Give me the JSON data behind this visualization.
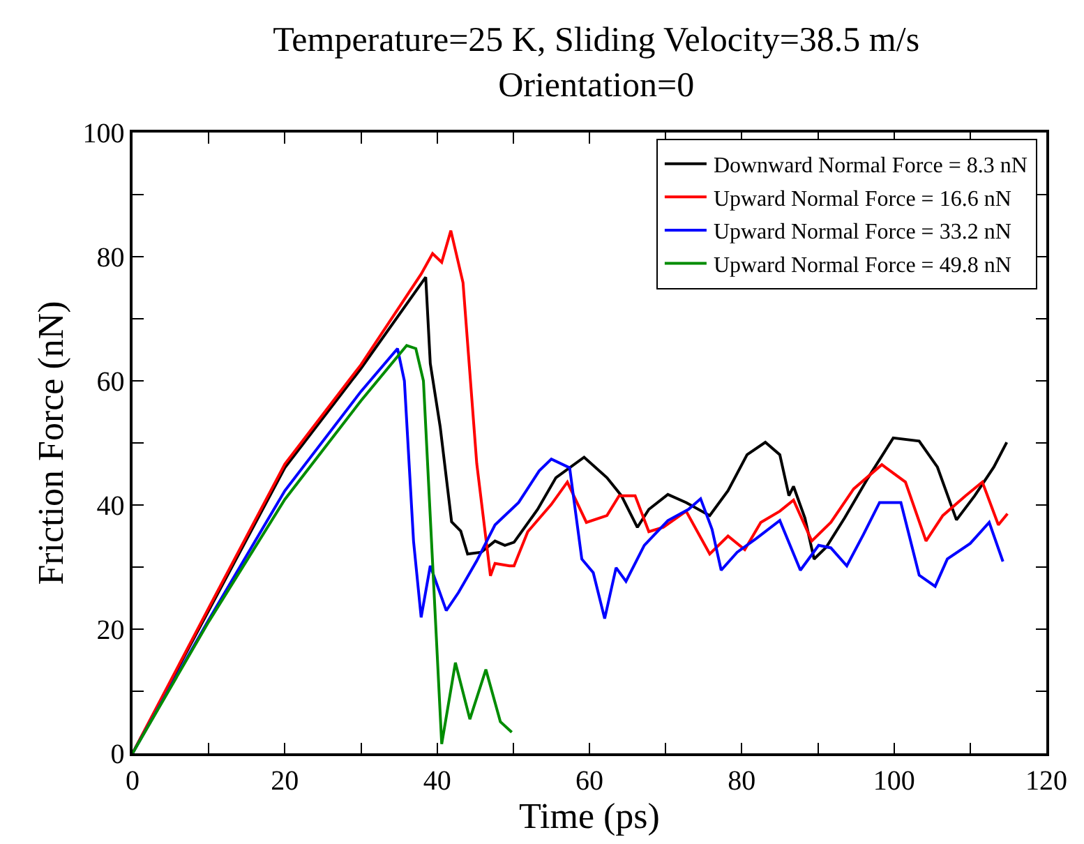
{
  "chart_data": {
    "type": "line",
    "title": "Temperature=25 K, Sliding Velocity=38.5 m/s",
    "subtitle": "Orientation=0",
    "xlabel": "Time (ps)",
    "ylabel": "Friction Force (nN)",
    "xlim": [
      0,
      120
    ],
    "ylim": [
      0,
      100
    ],
    "xticks": [
      0,
      {
        "value": 10,
        "label": null
      },
      20,
      {
        "value": 30,
        "label": null
      },
      40,
      {
        "value": 50,
        "label": null
      },
      60,
      {
        "value": 70,
        "label": null
      },
      80,
      {
        "value": 90,
        "label": null
      },
      100,
      {
        "value": 110,
        "label": null
      },
      120
    ],
    "yticks": [
      0,
      {
        "value": 10,
        "label": null
      },
      20,
      {
        "value": 30,
        "label": null
      },
      40,
      {
        "value": 50,
        "label": null
      },
      60,
      {
        "value": 70,
        "label": null
      },
      80,
      {
        "value": 90,
        "label": null
      },
      100
    ],
    "legend": "top right",
    "marker": "none",
    "line_style": "solid",
    "series": [
      {
        "name": "Downward Normal Force = 8.3 nN",
        "color": "#000000",
        "x": [
          0,
          10,
          20,
          30,
          38.5,
          39.1,
          40.4,
          41.9,
          43.1,
          44.0,
          45.8,
          47.6,
          48.9,
          50.1,
          53.2,
          55.6,
          59.3,
          62.3,
          64.2,
          66.3,
          67.8,
          70.3,
          72.7,
          75.8,
          78.2,
          80.7,
          83.1,
          85.0,
          86.2,
          86.8,
          88.3,
          89.5,
          91.1,
          93.5,
          96.6,
          99.9,
          103.3,
          105.7,
          108.2,
          110.6,
          113.1,
          114.8
        ],
        "values": [
          0,
          23,
          46,
          62,
          76.7,
          62.8,
          52.6,
          37.3,
          35.8,
          32.1,
          32.4,
          34.2,
          33.5,
          34,
          39.3,
          44.4,
          47.7,
          44.4,
          41.5,
          36.4,
          39.3,
          41.7,
          40.4,
          38.3,
          42.3,
          48.1,
          50.1,
          48.1,
          41.5,
          43,
          37.9,
          31.3,
          33.2,
          37.9,
          44.4,
          50.8,
          50.3,
          46.1,
          37.6,
          41.5,
          46.1,
          50.1
        ]
      },
      {
        "name": "Upward Normal Force = 16.6 nN",
        "color": "#ff0000",
        "x": [
          0,
          10,
          20,
          30,
          37.9,
          39.4,
          40.6,
          41.8,
          43.4,
          45.2,
          47.0,
          47.6,
          49.5,
          50.1,
          51.9,
          55.0,
          57.1,
          59.6,
          62.3,
          63.9,
          66.0,
          67.8,
          69.7,
          72.7,
          75.8,
          78.2,
          80.4,
          82.5,
          85.0,
          86.8,
          89.2,
          91.7,
          94.7,
          98.4,
          101.5,
          104.2,
          106.4,
          109.4,
          111.6,
          113.7,
          114.9
        ],
        "values": [
          0,
          23.4,
          46.6,
          62.6,
          77.2,
          80.5,
          79.1,
          84.2,
          75.8,
          46.7,
          28.6,
          30.6,
          30.2,
          30.2,
          35.7,
          40.1,
          43.7,
          37.2,
          38.3,
          41.5,
          41.5,
          35.7,
          36.4,
          39,
          32.1,
          35,
          32.8,
          37.2,
          39,
          40.8,
          34.2,
          37.2,
          42.6,
          46.5,
          43.7,
          34.2,
          38.3,
          41.5,
          43.7,
          36.8,
          38.6
        ]
      },
      {
        "name": "Upward Normal Force = 33.2 nN",
        "color": "#0000ff",
        "x": [
          0,
          10,
          20,
          30,
          34.8,
          35.7,
          36.9,
          37.9,
          39.1,
          41.2,
          42.8,
          45.2,
          47.6,
          50.7,
          53.4,
          55.0,
          57.4,
          59.0,
          60.5,
          62.0,
          63.5,
          64.8,
          67.2,
          70.3,
          73.0,
          74.6,
          76.1,
          77.3,
          79.4,
          81.9,
          85.0,
          87.7,
          90.1,
          91.7,
          93.8,
          96.0,
          98.1,
          100.9,
          103.3,
          105.4,
          107.0,
          110.0,
          112.5,
          114.3
        ],
        "values": [
          0,
          21.5,
          42.3,
          58.3,
          65.2,
          60,
          34.2,
          21.9,
          30.2,
          23,
          25.9,
          31,
          36.8,
          40.4,
          45.5,
          47.4,
          46,
          31.3,
          29.1,
          21.7,
          29.9,
          27.7,
          33.5,
          37.5,
          39.3,
          41,
          36.1,
          29.5,
          32.4,
          34.6,
          37.5,
          29.5,
          33.5,
          33.1,
          30.2,
          35.3,
          40.4,
          40.4,
          28.7,
          26.9,
          31.3,
          33.8,
          37.2,
          30.9
        ]
      },
      {
        "name": "Upward Normal Force = 49.8 nN",
        "color": "#008c00",
        "x": [
          0,
          10,
          20,
          30,
          36.0,
          37.2,
          38.2,
          40.6,
          42.4,
          44.3,
          46.4,
          48.3,
          49.8
        ],
        "values": [
          0,
          21.2,
          40.9,
          56.8,
          65.7,
          65.2,
          60,
          1.5,
          14.6,
          5.5,
          13.5,
          5.1,
          3.4
        ]
      }
    ]
  }
}
